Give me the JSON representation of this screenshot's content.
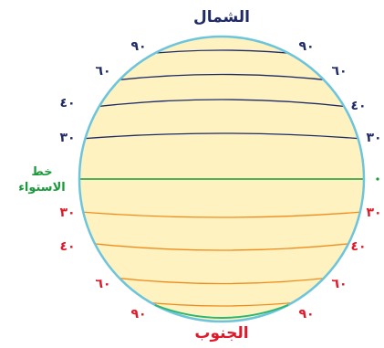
{
  "labels": {
    "north": "الشمال",
    "south": "الجنوب",
    "equator_line1": "خط",
    "equator_line2": "الاستواء"
  },
  "north_latitudes": [
    {
      "value": 90,
      "text": "٩٠"
    },
    {
      "value": 60,
      "text": "٦٠"
    },
    {
      "value": 40,
      "text": "٤٠"
    },
    {
      "value": 30,
      "text": "٣٠"
    }
  ],
  "south_latitudes": [
    {
      "value": 30,
      "text": "٣٠"
    },
    {
      "value": 40,
      "text": "٤٠"
    },
    {
      "value": 60,
      "text": "٦٠"
    },
    {
      "value": 90,
      "text": "٩٠"
    }
  ],
  "colors": {
    "globe_fill": "#fdf2c0",
    "globe_outline": "#6cc4dd",
    "north_lines": "#1f2a66",
    "south_lines": "#f08c1e",
    "equator_line": "#1a9a3a",
    "north_text": "#1f2a66",
    "south_text": "#e0182a",
    "equator_text": "#1a9a3a"
  }
}
